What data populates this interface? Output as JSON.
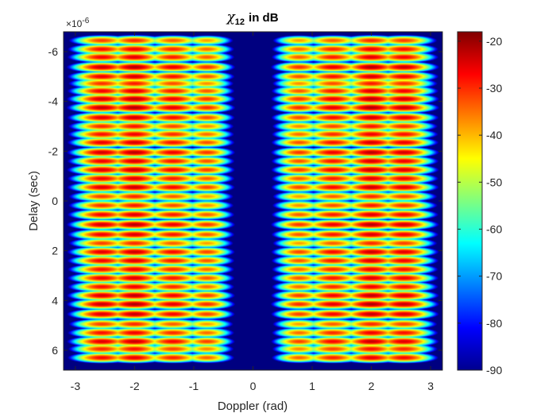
{
  "chart_data": {
    "type": "heatmap",
    "title_symbol": "χ",
    "title_subscript": "12",
    "title_rest": "in dB",
    "xlabel": "Doppler (rad)",
    "ylabel": "Delay (sec)",
    "xlim": [
      -3.2,
      3.2
    ],
    "ylim": [
      -6.8,
      6.8
    ],
    "y_reversed": true,
    "x_ticks": [
      -3,
      -2,
      -1,
      0,
      1,
      2,
      3
    ],
    "x_tick_labels": [
      "-3",
      "-2",
      "-1",
      "0",
      "1",
      "2",
      "3"
    ],
    "y_ticks": [
      -6,
      -4,
      -2,
      0,
      2,
      4,
      6
    ],
    "y_tick_labels": [
      "-6",
      "-4",
      "-2",
      "0",
      "2",
      "4",
      "6"
    ],
    "y_multiplier_base": "×10",
    "y_multiplier_exp": "-6",
    "colorbar": {
      "min": -90,
      "max": -18,
      "ticks": [
        -20,
        -30,
        -40,
        -50,
        -60,
        -70,
        -80,
        -90
      ],
      "tick_labels": [
        "-20",
        "-30",
        "-40",
        "-50",
        "-60",
        "-70",
        "-80",
        "-90"
      ],
      "colormap": "jet"
    },
    "floor_value": -90,
    "peak_value": -20,
    "doppler_lobe_centers": [
      -2.55,
      -2.0,
      -1.35,
      -0.78,
      0.78,
      1.35,
      2.0,
      2.55
    ],
    "doppler_lobe_strengths": [
      0.82,
      0.92,
      0.7,
      0.5,
      0.5,
      0.7,
      0.92,
      0.82
    ],
    "doppler_lobe_widths": [
      0.26,
      0.26,
      0.26,
      0.22,
      0.22,
      0.26,
      0.26,
      0.26
    ],
    "delay_rows": [
      {
        "delay": -6.45,
        "strength": 0.55
      },
      {
        "delay": -6.1,
        "strength": 0.72
      },
      {
        "delay": -5.78,
        "strength": 0.78
      },
      {
        "delay": -5.38,
        "strength": 0.98
      },
      {
        "delay": -5.0,
        "strength": 0.82
      },
      {
        "delay": -4.72,
        "strength": 0.6
      },
      {
        "delay": -4.42,
        "strength": 0.8
      },
      {
        "delay": -4.1,
        "strength": 0.95
      },
      {
        "delay": -3.75,
        "strength": 1.0
      },
      {
        "delay": -3.35,
        "strength": 0.85
      },
      {
        "delay": -3.0,
        "strength": 0.62
      },
      {
        "delay": -2.68,
        "strength": 0.72
      },
      {
        "delay": -2.35,
        "strength": 0.82
      },
      {
        "delay": -1.95,
        "strength": 0.95
      },
      {
        "delay": -1.6,
        "strength": 0.82
      },
      {
        "delay": -1.25,
        "strength": 0.9
      },
      {
        "delay": -0.9,
        "strength": 0.78
      },
      {
        "delay": -0.55,
        "strength": 0.88
      },
      {
        "delay": -0.18,
        "strength": 0.55
      },
      {
        "delay": 0.18,
        "strength": 0.6
      },
      {
        "delay": 0.55,
        "strength": 0.78
      },
      {
        "delay": 0.95,
        "strength": 0.95
      },
      {
        "delay": 1.35,
        "strength": 0.8
      },
      {
        "delay": 1.7,
        "strength": 0.55
      },
      {
        "delay": 2.05,
        "strength": 0.88
      },
      {
        "delay": 2.4,
        "strength": 0.8
      },
      {
        "delay": 2.75,
        "strength": 0.72
      },
      {
        "delay": 3.1,
        "strength": 0.8
      },
      {
        "delay": 3.45,
        "strength": 0.72
      },
      {
        "delay": 3.8,
        "strength": 0.92
      },
      {
        "delay": 4.15,
        "strength": 1.0
      },
      {
        "delay": 4.55,
        "strength": 0.9
      },
      {
        "delay": 4.95,
        "strength": 0.55
      },
      {
        "delay": 5.3,
        "strength": 0.72
      },
      {
        "delay": 5.65,
        "strength": 0.9
      },
      {
        "delay": 5.95,
        "strength": 0.62
      },
      {
        "delay": 6.3,
        "strength": 0.75
      }
    ]
  }
}
